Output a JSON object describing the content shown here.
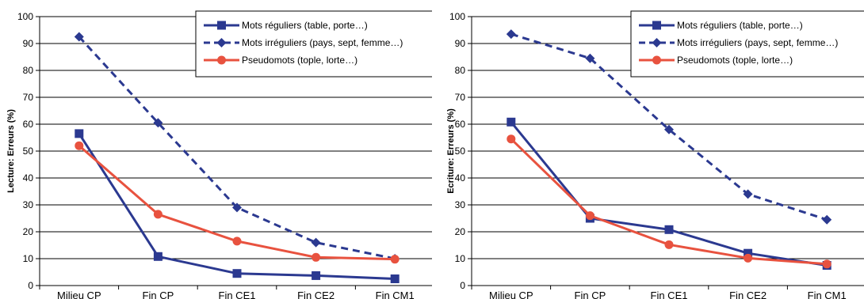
{
  "chart_data": [
    {
      "type": "line",
      "categories": [
        "Milieu CP",
        "Fin CP",
        "Fin CE1",
        "Fin CE2",
        "Fin CM1"
      ],
      "ylabel": "Lecture: Erreurs (%)",
      "xlabel": "",
      "ylim": [
        0,
        100
      ],
      "yticks": [
        0,
        10,
        20,
        30,
        40,
        50,
        60,
        70,
        80,
        90,
        100
      ],
      "grid": "horizontal",
      "legend": "top-right",
      "series": [
        {
          "name": "Mots réguliers (table, porte…)",
          "values": [
            56.5,
            10.8,
            4.5,
            3.7,
            2.5
          ],
          "color": "#2b3990",
          "style": "solid",
          "marker": "square"
        },
        {
          "name": "Mots irréguliers (pays, sept, femme…)",
          "values": [
            92.5,
            60.5,
            29.0,
            16.0,
            10.0
          ],
          "color": "#2b3990",
          "style": "dashed",
          "marker": "diamond"
        },
        {
          "name": "Pseudomots (tople, lorte…)",
          "values": [
            52.0,
            26.5,
            16.5,
            10.5,
            9.8
          ],
          "color": "#e8523f",
          "style": "solid",
          "marker": "circle"
        }
      ]
    },
    {
      "type": "line",
      "categories": [
        "Milieu CP",
        "Fin CP",
        "Fin CE1",
        "Fin CE2",
        "Fin CM1"
      ],
      "ylabel": "Ecriture: Erreurs (%)",
      "xlabel": "",
      "ylim": [
        0,
        100
      ],
      "yticks": [
        0,
        10,
        20,
        30,
        40,
        50,
        60,
        70,
        80,
        90,
        100
      ],
      "grid": "horizontal",
      "legend": "top-right",
      "series": [
        {
          "name": "Mots réguliers (table, porte…)",
          "values": [
            60.8,
            25.0,
            20.8,
            12.0,
            7.5
          ],
          "color": "#2b3990",
          "style": "solid",
          "marker": "square"
        },
        {
          "name": "Mots irréguliers (pays, sept, femme…)",
          "values": [
            93.5,
            84.5,
            58.0,
            34.0,
            24.5
          ],
          "color": "#2b3990",
          "style": "dashed",
          "marker": "diamond"
        },
        {
          "name": "Pseudomots (tople, lorte…)",
          "values": [
            54.5,
            26.0,
            15.2,
            10.2,
            8.0
          ],
          "color": "#e8523f",
          "style": "solid",
          "marker": "circle"
        }
      ]
    }
  ]
}
